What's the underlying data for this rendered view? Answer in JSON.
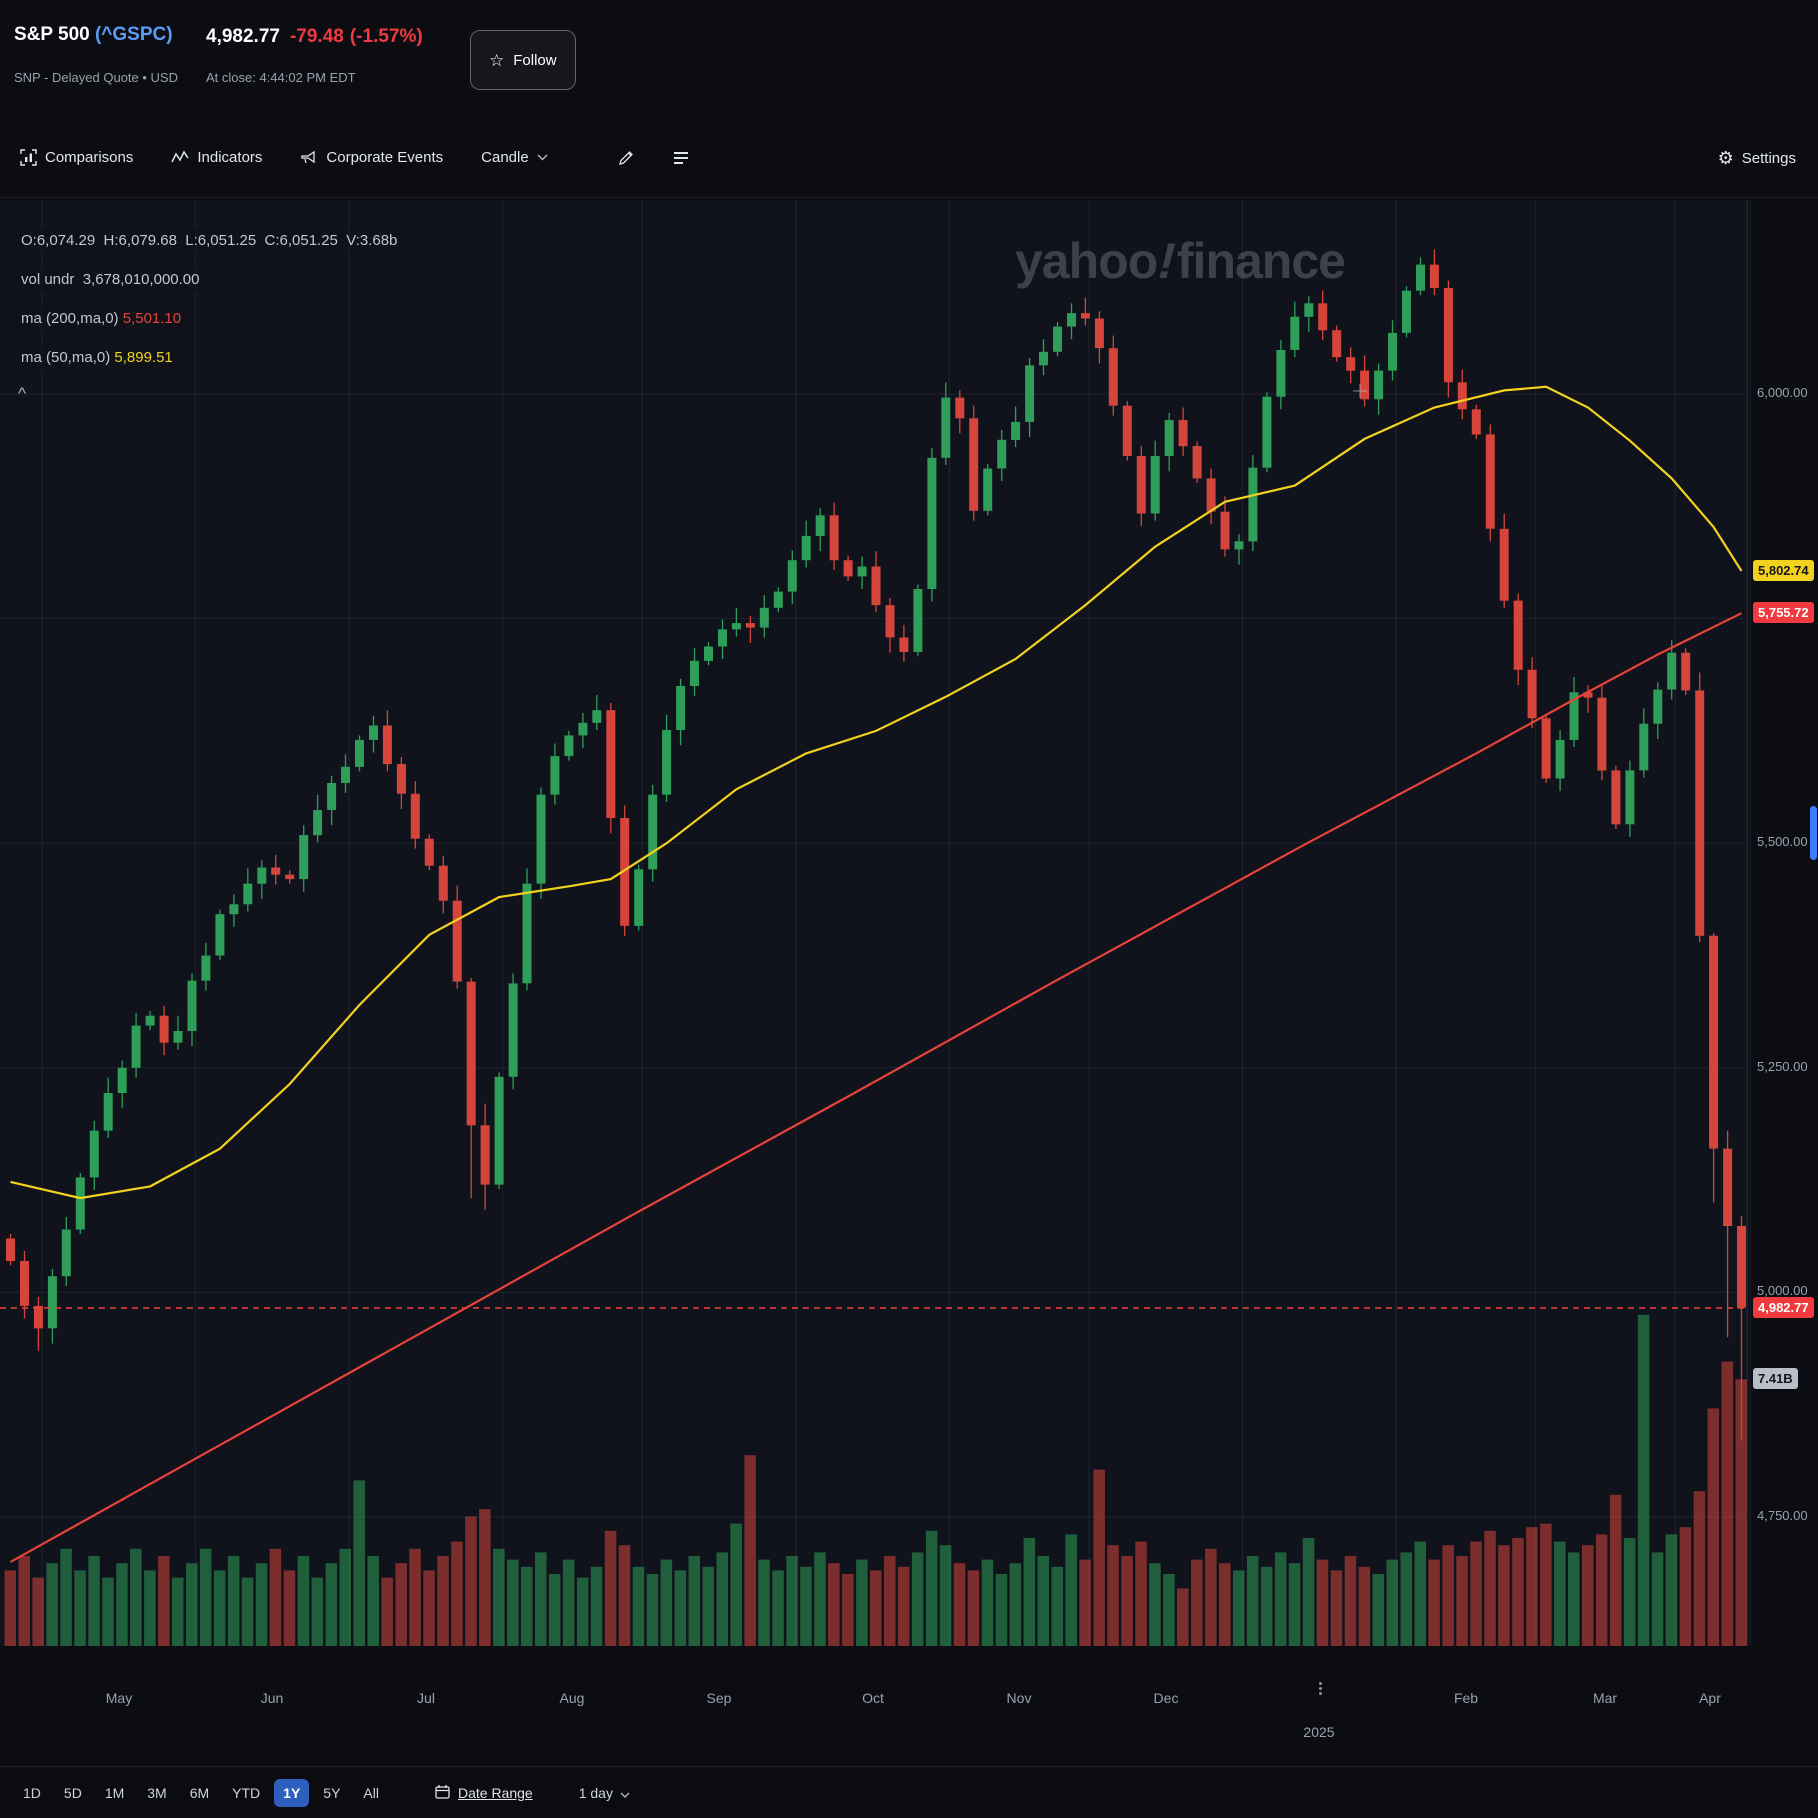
{
  "header": {
    "symbol_pre": "S&P 500 ",
    "symbol_ticker": "(^GSPC)",
    "exchange_line": "SNP - Delayed Quote • USD",
    "price": "4,982.77",
    "change": "-79.48",
    "change_pct": "(-1.57%)",
    "as_of": "At close: 4:44:02 PM EDT",
    "follow_label": "Follow"
  },
  "toolbar": {
    "comparisons": "Comparisons",
    "indicators": "Indicators",
    "corporate_events": "Corporate Events",
    "chart_type": "Candle",
    "settings": "Settings"
  },
  "readouts": {
    "ohlc": "O:6,074.29  H:6,079.68  L:6,051.25  C:6,051.25  V:3.68b",
    "vol_undr": "vol undr  3,678,010,000.00",
    "ma200_label": "ma (200,ma,0) ",
    "ma200_value": "5,501.10",
    "ma50_label": "ma (50,ma,0) ",
    "ma50_value": "5,899.51",
    "collapse": "^"
  },
  "watermark": {
    "part1": "yahoo",
    "bang": "!",
    "part2": "finance"
  },
  "footer": {
    "ranges": [
      "1D",
      "5D",
      "1M",
      "3M",
      "6M",
      "YTD",
      "1Y",
      "5Y",
      "All"
    ],
    "selected": "1Y",
    "date_range": "Date Range",
    "interval": "1 day"
  },
  "colors": {
    "up": "#2e9e58",
    "down": "#d6453b",
    "ma50": "#f2d21f",
    "ma200": "#e8423c",
    "grid": "rgba(125,138,165,0.14)",
    "last_line": "#e8423c",
    "accent_blue": "#3d7eff"
  },
  "chart_data": {
    "type": "candlestick",
    "symbol": "^GSPC",
    "title": "S&P 500 1Y daily candles with 50/200-day moving averages and volume",
    "price_axis": {
      "min": 4600,
      "max": 6216,
      "grid_prices": [
        6000,
        5750,
        5500,
        5250,
        5000,
        4750
      ],
      "ticks": [
        {
          "label": "6,000.00",
          "price": 6000
        },
        {
          "label": "5,500.00",
          "price": 5500
        },
        {
          "label": "5,250.00",
          "price": 5250
        },
        {
          "label": "5,000.00",
          "price": 5000
        },
        {
          "label": "4,750.00",
          "price": 4750
        }
      ]
    },
    "badges": [
      {
        "label": "5,802.74",
        "price": 5802.74,
        "kind": "ma50",
        "style": "yellow"
      },
      {
        "label": "5,755.72",
        "price": 5755.72,
        "kind": "ma200",
        "style": "red"
      },
      {
        "label": "4,982.77",
        "price": 4982.77,
        "kind": "last-price",
        "style": "red"
      },
      {
        "label": "7.41B",
        "kind": "last-volume",
        "style": "gray"
      }
    ],
    "last_price": 4982.77,
    "last_volume_b": 7.41,
    "months": [
      "May",
      "Jun",
      "Jul",
      "Aug",
      "Sep",
      "Oct",
      "Nov",
      "Dec",
      "",
      "Feb",
      "Mar",
      "Apr"
    ],
    "year_label": "2025",
    "year_month_index": 8,
    "month_starts": [
      3,
      14,
      25,
      36,
      46,
      57,
      68,
      78,
      89,
      100,
      110,
      120
    ],
    "first_open": 5060,
    "open_rule": "previous_close",
    "closes": [
      5035,
      4985,
      4960,
      5018,
      5070,
      5128,
      5180,
      5222,
      5250,
      5297,
      5308,
      5278,
      5291,
      5347,
      5375,
      5421,
      5432,
      5455,
      5473,
      5465,
      5460,
      5509,
      5537,
      5567,
      5585,
      5615,
      5631,
      5588,
      5555,
      5505,
      5475,
      5436,
      5346,
      5186,
      5120,
      5240,
      5344,
      5455,
      5554,
      5597,
      5620,
      5634,
      5648,
      5528,
      5408,
      5471,
      5554,
      5626,
      5675,
      5703,
      5719,
      5738,
      5745,
      5740,
      5762,
      5780,
      5815,
      5842,
      5865,
      5815,
      5797,
      5808,
      5765,
      5729,
      5713,
      5783,
      5929,
      5996,
      5973,
      5870,
      5917,
      5949,
      5969,
      6032,
      6047,
      6075,
      6090,
      6084,
      6051,
      5987,
      5931,
      5867,
      5931,
      5971,
      5942,
      5906,
      5869,
      5827,
      5836,
      5918,
      5997,
      6049,
      6086,
      6101,
      6071,
      6041,
      6026,
      5994,
      6026,
      6068,
      6115,
      6144,
      6118,
      6013,
      5983,
      5955,
      5850,
      5770,
      5693,
      5639,
      5572,
      5615,
      5668,
      5662,
      5581,
      5521,
      5581,
      5633,
      5671,
      5712,
      5670,
      5397,
      5160,
      5074,
      4983
    ],
    "volumes_b": [
      2.1,
      2.5,
      1.9,
      2.3,
      2.7,
      2.1,
      2.5,
      1.9,
      2.3,
      2.7,
      2.1,
      2.5,
      1.9,
      2.3,
      2.7,
      2.1,
      2.5,
      1.9,
      2.3,
      2.7,
      2.1,
      2.5,
      1.9,
      2.3,
      2.7,
      4.6,
      2.5,
      1.9,
      2.3,
      2.7,
      2.1,
      2.5,
      2.9,
      3.6,
      3.8,
      2.7,
      2.4,
      2.2,
      2.6,
      2.0,
      2.4,
      1.9,
      2.2,
      3.2,
      2.8,
      2.2,
      2.0,
      2.4,
      2.1,
      2.5,
      2.2,
      2.6,
      3.4,
      5.3,
      2.4,
      2.1,
      2.5,
      2.2,
      2.6,
      2.3,
      2.0,
      2.4,
      2.1,
      2.5,
      2.2,
      2.6,
      3.2,
      2.8,
      2.3,
      2.1,
      2.4,
      2.0,
      2.3,
      3.0,
      2.5,
      2.2,
      3.1,
      2.4,
      4.9,
      2.8,
      2.5,
      2.9,
      2.3,
      2.0,
      1.6,
      2.4,
      2.7,
      2.3,
      2.1,
      2.5,
      2.2,
      2.6,
      2.3,
      3.0,
      2.4,
      2.1,
      2.5,
      2.2,
      2.0,
      2.4,
      2.6,
      2.9,
      2.4,
      2.8,
      2.5,
      2.9,
      3.2,
      2.8,
      3.0,
      3.3,
      3.4,
      2.9,
      2.6,
      2.8,
      3.1,
      4.2,
      3.0,
      9.2,
      2.6,
      3.1,
      3.3,
      4.3,
      6.6,
      7.9,
      7.41
    ],
    "wick_overrides": {
      "2": [
        4995,
        4935
      ],
      "33": [
        5350,
        5105
      ],
      "34": [
        5210,
        5092
      ],
      "101": [
        6152,
        6110
      ],
      "121": [
        5690,
        5390
      ],
      "122": [
        5400,
        5100
      ],
      "123": [
        5180,
        4950
      ],
      "124": [
        5085,
        4835
      ]
    },
    "ma50": {
      "name": "ma (50,ma,0)",
      "value_at_cursor": 5899.51,
      "last": 5802.74,
      "anchors": [
        [
          0,
          5123
        ],
        [
          5,
          5105
        ],
        [
          10,
          5118
        ],
        [
          15,
          5160
        ],
        [
          20,
          5232
        ],
        [
          25,
          5320
        ],
        [
          30,
          5398
        ],
        [
          35,
          5440
        ],
        [
          40,
          5452
        ],
        [
          43,
          5460
        ],
        [
          47,
          5500
        ],
        [
          52,
          5560
        ],
        [
          57,
          5600
        ],
        [
          62,
          5625
        ],
        [
          67,
          5663
        ],
        [
          72,
          5705
        ],
        [
          77,
          5765
        ],
        [
          82,
          5830
        ],
        [
          87,
          5880
        ],
        [
          92,
          5898
        ],
        [
          97,
          5950
        ],
        [
          102,
          5985
        ],
        [
          107,
          6004
        ],
        [
          110,
          6008
        ],
        [
          113,
          5985
        ],
        [
          116,
          5948
        ],
        [
          119,
          5906
        ],
        [
          122,
          5852
        ],
        [
          124,
          5803
        ]
      ]
    },
    "ma200": {
      "name": "ma (200,ma,0)",
      "value_at_cursor": 5501.1,
      "last": 5755.72,
      "anchors": [
        [
          0,
          4700
        ],
        [
          15,
          4830
        ],
        [
          30,
          4960
        ],
        [
          45,
          5090
        ],
        [
          60,
          5218
        ],
        [
          75,
          5348
        ],
        [
          93,
          5501
        ],
        [
          105,
          5600
        ],
        [
          112,
          5660
        ],
        [
          118,
          5710
        ],
        [
          124,
          5756
        ]
      ]
    }
  }
}
